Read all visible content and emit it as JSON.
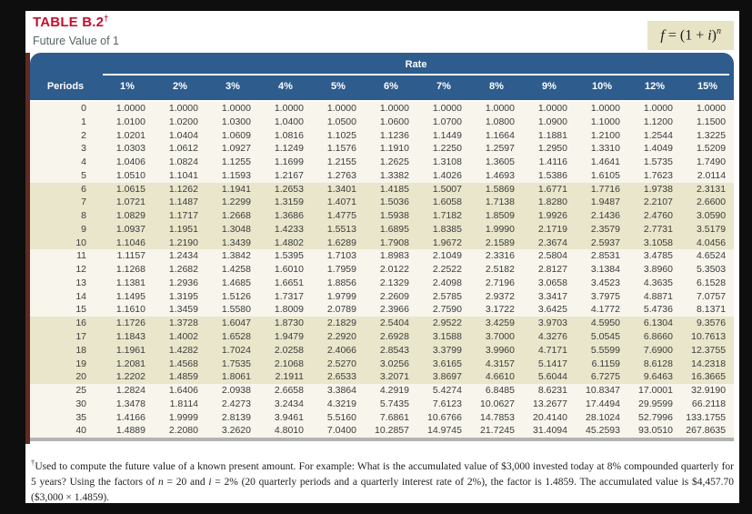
{
  "colors": {
    "title_red": "#c2112f",
    "header_blue": "#2d5c8d",
    "band_beige": "#e9e6cb",
    "band_light": "#f7f5ec",
    "formula_box_bg": "#e7e3c5",
    "page_edge_strip": "#5f2a22"
  },
  "header": {
    "table_label": "TABLE B.2",
    "table_label_dagger": "†",
    "subtitle": "Future Value of 1"
  },
  "formula": {
    "lhs": "f",
    "mid": " = (1 + ",
    "var": "i",
    "close": ")",
    "exponent": "n"
  },
  "table": {
    "rate_group_label": "Rate",
    "periods_header": "Periods",
    "rate_headers": [
      "1%",
      "2%",
      "3%",
      "4%",
      "5%",
      "6%",
      "7%",
      "8%",
      "9%",
      "10%",
      "12%",
      "15%"
    ],
    "rows": [
      {
        "period": "0",
        "band": "light",
        "values": [
          "1.0000",
          "1.0000",
          "1.0000",
          "1.0000",
          "1.0000",
          "1.0000",
          "1.0000",
          "1.0000",
          "1.0000",
          "1.0000",
          "1.0000",
          "1.0000"
        ]
      },
      {
        "period": "1",
        "band": "light",
        "values": [
          "1.0100",
          "1.0200",
          "1.0300",
          "1.0400",
          "1.0500",
          "1.0600",
          "1.0700",
          "1.0800",
          "1.0900",
          "1.1000",
          "1.1200",
          "1.1500"
        ]
      },
      {
        "period": "2",
        "band": "light",
        "values": [
          "1.0201",
          "1.0404",
          "1.0609",
          "1.0816",
          "1.1025",
          "1.1236",
          "1.1449",
          "1.1664",
          "1.1881",
          "1.2100",
          "1.2544",
          "1.3225"
        ]
      },
      {
        "period": "3",
        "band": "light",
        "values": [
          "1.0303",
          "1.0612",
          "1.0927",
          "1.1249",
          "1.1576",
          "1.1910",
          "1.2250",
          "1.2597",
          "1.2950",
          "1.3310",
          "1.4049",
          "1.5209"
        ]
      },
      {
        "period": "4",
        "band": "light",
        "values": [
          "1.0406",
          "1.0824",
          "1.1255",
          "1.1699",
          "1.2155",
          "1.2625",
          "1.3108",
          "1.3605",
          "1.4116",
          "1.4641",
          "1.5735",
          "1.7490"
        ]
      },
      {
        "period": "5",
        "band": "light",
        "values": [
          "1.0510",
          "1.1041",
          "1.1593",
          "1.2167",
          "1.2763",
          "1.3382",
          "1.4026",
          "1.4693",
          "1.5386",
          "1.6105",
          "1.7623",
          "2.0114"
        ]
      },
      {
        "period": "6",
        "band": "beige",
        "values": [
          "1.0615",
          "1.1262",
          "1.1941",
          "1.2653",
          "1.3401",
          "1.4185",
          "1.5007",
          "1.5869",
          "1.6771",
          "1.7716",
          "1.9738",
          "2.3131"
        ]
      },
      {
        "period": "7",
        "band": "beige",
        "values": [
          "1.0721",
          "1.1487",
          "1.2299",
          "1.3159",
          "1.4071",
          "1.5036",
          "1.6058",
          "1.7138",
          "1.8280",
          "1.9487",
          "2.2107",
          "2.6600"
        ]
      },
      {
        "period": "8",
        "band": "beige",
        "values": [
          "1.0829",
          "1.1717",
          "1.2668",
          "1.3686",
          "1.4775",
          "1.5938",
          "1.7182",
          "1.8509",
          "1.9926",
          "2.1436",
          "2.4760",
          "3.0590"
        ]
      },
      {
        "period": "9",
        "band": "beige",
        "values": [
          "1.0937",
          "1.1951",
          "1.3048",
          "1.4233",
          "1.5513",
          "1.6895",
          "1.8385",
          "1.9990",
          "2.1719",
          "2.3579",
          "2.7731",
          "3.5179"
        ]
      },
      {
        "period": "10",
        "band": "beige",
        "values": [
          "1.1046",
          "1.2190",
          "1.3439",
          "1.4802",
          "1.6289",
          "1.7908",
          "1.9672",
          "2.1589",
          "2.3674",
          "2.5937",
          "3.1058",
          "4.0456"
        ]
      },
      {
        "period": "11",
        "band": "light",
        "values": [
          "1.1157",
          "1.2434",
          "1.3842",
          "1.5395",
          "1.7103",
          "1.8983",
          "2.1049",
          "2.3316",
          "2.5804",
          "2.8531",
          "3.4785",
          "4.6524"
        ]
      },
      {
        "period": "12",
        "band": "light",
        "values": [
          "1.1268",
          "1.2682",
          "1.4258",
          "1.6010",
          "1.7959",
          "2.0122",
          "2.2522",
          "2.5182",
          "2.8127",
          "3.1384",
          "3.8960",
          "5.3503"
        ]
      },
      {
        "period": "13",
        "band": "light",
        "values": [
          "1.1381",
          "1.2936",
          "1.4685",
          "1.6651",
          "1.8856",
          "2.1329",
          "2.4098",
          "2.7196",
          "3.0658",
          "3.4523",
          "4.3635",
          "6.1528"
        ]
      },
      {
        "period": "14",
        "band": "light",
        "values": [
          "1.1495",
          "1.3195",
          "1.5126",
          "1.7317",
          "1.9799",
          "2.2609",
          "2.5785",
          "2.9372",
          "3.3417",
          "3.7975",
          "4.8871",
          "7.0757"
        ]
      },
      {
        "period": "15",
        "band": "light",
        "values": [
          "1.1610",
          "1.3459",
          "1.5580",
          "1.8009",
          "2.0789",
          "2.3966",
          "2.7590",
          "3.1722",
          "3.6425",
          "4.1772",
          "5.4736",
          "8.1371"
        ]
      },
      {
        "period": "16",
        "band": "beige",
        "values": [
          "1.1726",
          "1.3728",
          "1.6047",
          "1.8730",
          "2.1829",
          "2.5404",
          "2.9522",
          "3.4259",
          "3.9703",
          "4.5950",
          "6.1304",
          "9.3576"
        ]
      },
      {
        "period": "17",
        "band": "beige",
        "values": [
          "1.1843",
          "1.4002",
          "1.6528",
          "1.9479",
          "2.2920",
          "2.6928",
          "3.1588",
          "3.7000",
          "4.3276",
          "5.0545",
          "6.8660",
          "10.7613"
        ]
      },
      {
        "period": "18",
        "band": "beige",
        "values": [
          "1.1961",
          "1.4282",
          "1.7024",
          "2.0258",
          "2.4066",
          "2.8543",
          "3.3799",
          "3.9960",
          "4.7171",
          "5.5599",
          "7.6900",
          "12.3755"
        ]
      },
      {
        "period": "19",
        "band": "beige",
        "values": [
          "1.2081",
          "1.4568",
          "1.7535",
          "2.1068",
          "2.5270",
          "3.0256",
          "3.6165",
          "4.3157",
          "5.1417",
          "6.1159",
          "8.6128",
          "14.2318"
        ]
      },
      {
        "period": "20",
        "band": "beige",
        "values": [
          "1.2202",
          "1.4859",
          "1.8061",
          "2.1911",
          "2.6533",
          "3.2071",
          "3.8697",
          "4.6610",
          "5.6044",
          "6.7275",
          "9.6463",
          "16.3665"
        ]
      },
      {
        "period": "25",
        "band": "light",
        "values": [
          "1.2824",
          "1.6406",
          "2.0938",
          "2.6658",
          "3.3864",
          "4.2919",
          "5.4274",
          "6.8485",
          "8.6231",
          "10.8347",
          "17.0001",
          "32.9190"
        ]
      },
      {
        "period": "30",
        "band": "light",
        "values": [
          "1.3478",
          "1.8114",
          "2.4273",
          "3.2434",
          "4.3219",
          "5.7435",
          "7.6123",
          "10.0627",
          "13.2677",
          "17.4494",
          "29.9599",
          "66.2118"
        ]
      },
      {
        "period": "35",
        "band": "light",
        "values": [
          "1.4166",
          "1.9999",
          "2.8139",
          "3.9461",
          "5.5160",
          "7.6861",
          "10.6766",
          "14.7853",
          "20.4140",
          "28.1024",
          "52.7996",
          "133.1755"
        ]
      },
      {
        "period": "40",
        "band": "light",
        "values": [
          "1.4889",
          "2.2080",
          "3.2620",
          "4.8010",
          "7.0400",
          "10.2857",
          "14.9745",
          "21.7245",
          "31.4094",
          "45.2593",
          "93.0510",
          "267.8635"
        ]
      }
    ]
  },
  "footnote": {
    "dagger": "†",
    "part1": "Used to compute the future value of a known present amount. For example: What is the accumulated value of $3,000 invested today at 8% compounded quarterly for 5 years? Using the factors of ",
    "var_n": "n",
    "part2": " = 20 and ",
    "var_i": "i",
    "part3": " = 2% (20 quarterly periods and a quarterly interest rate of 2%), the factor is 1.4859. The accumulated value is $4,457.70 ($3,000 × 1.4859)."
  }
}
